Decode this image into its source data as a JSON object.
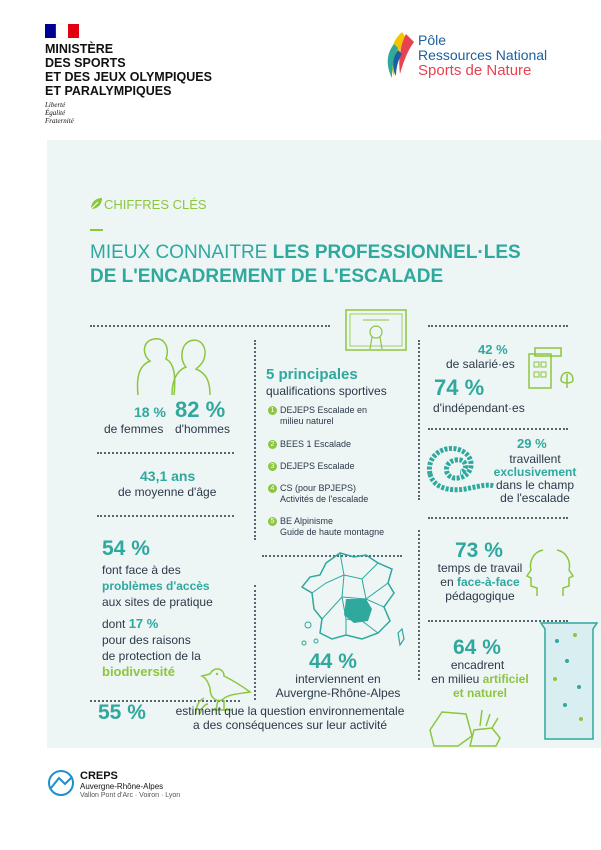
{
  "header": {
    "ministry_lines": [
      "MINISTÈRE",
      "DES SPORTS",
      "ET DES JEUX OLYMPIQUES",
      "ET PARALYMPIQUES"
    ],
    "motto": [
      "Liberté",
      "Égalité",
      "Fraternité"
    ],
    "pole_lines": [
      "Pôle",
      "Ressources National",
      "Sports de Nature"
    ]
  },
  "section_label": "CHIFFRES CLÉS",
  "title": {
    "line1_light": "MIEUX CONNAITRE ",
    "line1_bold": "LES PROFESSIONNEL·LES",
    "line2": "DE L'ENCADREMENT DE L'ESCALADE"
  },
  "gender": {
    "women_pct": "18 %",
    "women_label": "de femmes",
    "men_pct": "82 %",
    "men_label": "d'hommes"
  },
  "age": {
    "value": "43,1 ans",
    "label": "de moyenne d'âge"
  },
  "access": {
    "pct": "54 %",
    "line1": "font face à des",
    "line2a": "pro",
    "line2b": "blèmes d'accès",
    "line3": "aux sites de pratique",
    "dont": "dont ",
    "dont_pct": "17 %",
    "line5": "pour des raisons",
    "line6": "de protection de la",
    "line7": "biodiversité"
  },
  "qualifications": {
    "title": "5 principales",
    "subtitle": "qualifications sportives",
    "items": [
      {
        "n": "1",
        "l1": "DEJEPS Escalade en",
        "l2": "milieu naturel"
      },
      {
        "n": "2",
        "l1": "BEES 1 Escalade",
        "l2": ""
      },
      {
        "n": "3",
        "l1": "DEJEPS Escalade",
        "l2": ""
      },
      {
        "n": "4",
        "l1": "CS (pour BPJEPS)",
        "l2": "Activités de l'escalade"
      },
      {
        "n": "5",
        "l1": "BE Alpinisme",
        "l2": "Guide de haute montagne"
      }
    ]
  },
  "region": {
    "pct": "44 %",
    "line1": "interviennent en",
    "line2": "Auvergne-Rhône-Alpes"
  },
  "employment": {
    "salaried_pct": "42 %",
    "salaried_label": "de salarié·es",
    "indep_pct": "74 %",
    "indep_label": "d'indépendant·es"
  },
  "exclusive": {
    "pct": "29 %",
    "line1": "travaillent",
    "line2": "exclusivement",
    "line3": "dans le champ",
    "line4": "de l'escalade"
  },
  "teaching": {
    "pct": "73 %",
    "line1": "temps de travail",
    "line2a": "en ",
    "line2b": "face-à-face",
    "line3": "pédagogique"
  },
  "environment": {
    "pct": "64 %",
    "line1": "encadrent",
    "line2a": "en milieu ",
    "line2b": "artificiel",
    "line3": "et naturel"
  },
  "footer_stat": {
    "pct": "55 %",
    "line1": "estiment que la question environnementale",
    "line2": "a des conséquences sur leur activité"
  },
  "creps": {
    "name": "CREPS",
    "region": "Auvergne-Rhône-Alpes",
    "sites": "Vallon Pont d'Arc · Voiron · Lyon"
  },
  "colors": {
    "teal": "#2fa89e",
    "green": "#8cc63f",
    "dark": "#2a3a4a",
    "panel": "#eef5f5"
  }
}
